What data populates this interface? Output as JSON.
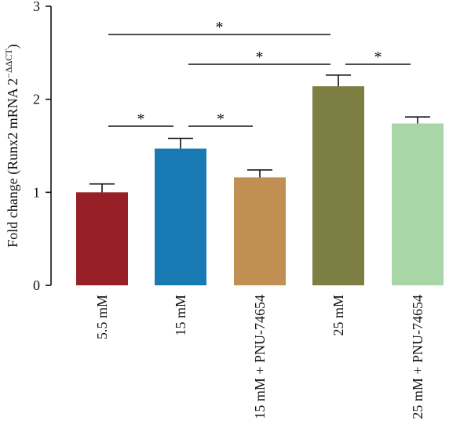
{
  "chart_data": {
    "type": "bar",
    "ylabel": {
      "prefix": "Fold change (Runx2 mRNA 2",
      "superscript": "−ΔΔCT",
      "suffix": ")"
    },
    "xlabel": "",
    "ylim": [
      0,
      3
    ],
    "yticks": [
      "0",
      "1",
      "2",
      "3"
    ],
    "grid": false,
    "legend": "none",
    "categories": [
      "5.5 mM",
      "15 mM",
      "15 mM + PNU-74654",
      "25 mM",
      "25 mM + PNU-74654"
    ],
    "values": [
      1.0,
      1.47,
      1.16,
      2.14,
      1.74
    ],
    "errors": [
      0.09,
      0.11,
      0.08,
      0.12,
      0.07
    ],
    "colors": [
      "#962026",
      "#1879b3",
      "#c28f52",
      "#7d7e42",
      "#a9d6a6"
    ],
    "significance": [
      {
        "from": 0,
        "to": 1,
        "label": "*"
      },
      {
        "from": 1,
        "to": 2,
        "label": "*"
      },
      {
        "from": 0,
        "to": 3,
        "label": "*"
      },
      {
        "from": 1,
        "to": 3,
        "label": "*"
      },
      {
        "from": 3,
        "to": 4,
        "label": "*"
      }
    ]
  }
}
